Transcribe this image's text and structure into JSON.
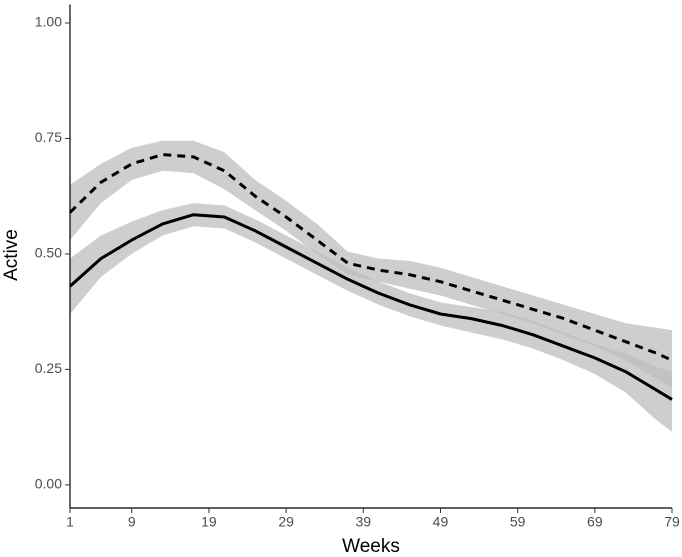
{
  "chart_data": {
    "type": "line",
    "x_label": "Weeks",
    "y_label": "Active",
    "x": [
      1,
      5,
      9,
      13,
      17,
      21,
      25,
      29,
      33,
      37,
      41,
      45,
      49,
      53,
      57,
      61,
      65,
      69,
      73,
      77,
      79
    ],
    "series": [
      {
        "color": "#000000",
        "linestyle": "solid",
        "band_color": "#bdbdbd",
        "values": [
          0.43,
          0.49,
          0.53,
          0.565,
          0.585,
          0.58,
          0.55,
          0.515,
          0.48,
          0.445,
          0.415,
          0.39,
          0.37,
          0.36,
          0.345,
          0.325,
          0.3,
          0.275,
          0.245,
          0.205,
          0.185
        ],
        "lower": [
          0.37,
          0.45,
          0.5,
          0.54,
          0.56,
          0.555,
          0.525,
          0.49,
          0.455,
          0.42,
          0.39,
          0.365,
          0.345,
          0.33,
          0.315,
          0.295,
          0.27,
          0.24,
          0.2,
          0.14,
          0.115
        ],
        "upper": [
          0.49,
          0.54,
          0.57,
          0.595,
          0.61,
          0.605,
          0.575,
          0.54,
          0.505,
          0.47,
          0.44,
          0.415,
          0.395,
          0.385,
          0.375,
          0.355,
          0.33,
          0.305,
          0.285,
          0.255,
          0.245
        ]
      },
      {
        "color": "#000000",
        "linestyle": "dashed",
        "band_color": "#bdbdbd",
        "values": [
          0.59,
          0.655,
          0.695,
          0.715,
          0.71,
          0.68,
          0.625,
          0.58,
          0.53,
          0.48,
          0.465,
          0.455,
          0.44,
          0.42,
          0.4,
          0.38,
          0.36,
          0.335,
          0.31,
          0.285,
          0.27
        ],
        "lower": [
          0.53,
          0.61,
          0.66,
          0.68,
          0.675,
          0.64,
          0.595,
          0.55,
          0.5,
          0.455,
          0.44,
          0.425,
          0.41,
          0.39,
          0.37,
          0.35,
          0.325,
          0.3,
          0.27,
          0.23,
          0.21
        ],
        "upper": [
          0.65,
          0.695,
          0.73,
          0.745,
          0.745,
          0.72,
          0.66,
          0.615,
          0.565,
          0.505,
          0.49,
          0.485,
          0.47,
          0.45,
          0.43,
          0.41,
          0.39,
          0.37,
          0.35,
          0.34,
          0.335
        ]
      }
    ],
    "xlim": [
      1,
      79
    ],
    "xticks": [
      1,
      9,
      19,
      29,
      39,
      49,
      59,
      69,
      79
    ],
    "ylim": [
      -0.05,
      1.04
    ],
    "yticks": [
      {
        "value": 0,
        "label": "0.00"
      },
      {
        "value": 0.25,
        "label": "0.25"
      },
      {
        "value": 0.5,
        "label": "0.50"
      },
      {
        "value": 0.75,
        "label": "0.75"
      },
      {
        "value": 1,
        "label": "1.00"
      }
    ],
    "grid": false
  }
}
